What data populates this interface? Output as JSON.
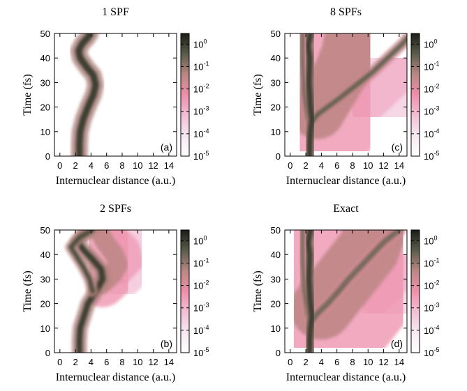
{
  "chart_data": [
    {
      "type": "heatmap",
      "title": "1 SPF",
      "panel_label": "(a)",
      "xlabel": "Internuclear distance (a.u.)",
      "ylabel": "Time (fs)",
      "xlim": [
        -0.7,
        15
      ],
      "xticks": [
        0,
        2,
        4,
        6,
        8,
        10,
        12,
        14
      ],
      "ylim": [
        0,
        50
      ],
      "yticks": [
        0,
        10,
        20,
        30,
        40,
        50
      ],
      "clim": [
        1e-05,
        3
      ],
      "log_color": true,
      "colormap": [
        "#ffffff",
        "#f7e9f3",
        "#f3bfd5",
        "#ee8fab",
        "#b98883",
        "#5a5c4a",
        "#1b1d17"
      ],
      "cticks": [
        {
          "value": 1e-05,
          "label": "10",
          "exponent": "-5"
        },
        {
          "value": 0.0001,
          "label": "10",
          "exponent": "-4"
        },
        {
          "value": 0.001,
          "label": "10",
          "exponent": "-3"
        },
        {
          "value": 0.01,
          "label": "10",
          "exponent": "-2"
        },
        {
          "value": 0.1,
          "label": "10",
          "exponent": "-1"
        },
        {
          "value": 1,
          "label": "10",
          "exponent": "0"
        }
      ],
      "ridges": [
        {
          "x": [
            2.5,
            2.5,
            2.6,
            3.0,
            3.6,
            4.3,
            4.6,
            4.3,
            3.5,
            2.6,
            2.4,
            2.9,
            3.5,
            3.9
          ],
          "y": [
            0,
            5,
            10,
            15,
            20,
            25,
            29,
            33,
            36,
            40,
            43,
            46,
            48,
            50
          ],
          "level": 1,
          "width": 0.9
        }
      ]
    },
    {
      "type": "heatmap",
      "title": "2 SPFs",
      "panel_label": "(b)",
      "xlabel": "Internuclear distance (a.u.)",
      "ylabel": "Time (fs)",
      "xlim": [
        -0.7,
        15
      ],
      "xticks": [
        0,
        2,
        4,
        6,
        8,
        10,
        12,
        14
      ],
      "ylim": [
        0,
        50
      ],
      "yticks": [
        0,
        10,
        20,
        30,
        40,
        50
      ],
      "clim": [
        1e-05,
        3
      ],
      "log_color": true,
      "colormap": [
        "#ffffff",
        "#f7e9f3",
        "#f3bfd5",
        "#ee8fab",
        "#b98883",
        "#5a5c4a",
        "#1b1d17"
      ],
      "cticks": [
        {
          "value": 1e-05,
          "label": "10",
          "exponent": "-5"
        },
        {
          "value": 0.0001,
          "label": "10",
          "exponent": "-4"
        },
        {
          "value": 0.001,
          "label": "10",
          "exponent": "-3"
        },
        {
          "value": 0.01,
          "label": "10",
          "exponent": "-2"
        },
        {
          "value": 0.1,
          "label": "10",
          "exponent": "-1"
        },
        {
          "value": 1,
          "label": "10",
          "exponent": "0"
        }
      ],
      "ridges": [
        {
          "x": [
            8,
            9.5,
            9,
            7.5
          ],
          "y": [
            32,
            37,
            43,
            48
          ],
          "level": 0.002,
          "width": 2.5
        },
        {
          "x": [
            5.5,
            6.8,
            7.5,
            7.0,
            5.8,
            5.0
          ],
          "y": [
            28,
            32,
            36,
            40,
            45,
            50
          ],
          "level": 0.03,
          "width": 2.5
        },
        {
          "x": [
            2.5,
            2.5,
            2.6,
            3.1,
            3.6,
            4.6,
            5.5,
            5.3,
            4.2,
            3.0,
            2.3,
            3.0,
            3.8
          ],
          "y": [
            0,
            5,
            10,
            15,
            20,
            25,
            30,
            34,
            38,
            42,
            45,
            48,
            50
          ],
          "level": 1,
          "width": 0.8
        },
        {
          "x": [
            4.2,
            3.8,
            3.0,
            2.0,
            1.4,
            2.5,
            4.2
          ],
          "y": [
            25,
            30,
            35,
            40,
            43,
            47,
            50
          ],
          "level": 0.6,
          "width": 0.6
        }
      ]
    },
    {
      "type": "heatmap",
      "title": "8 SPFs",
      "panel_label": "(c)",
      "xlabel": "Internuclear distance (a.u.)",
      "ylabel": "Time (fs)",
      "xlim": [
        -0.7,
        15
      ],
      "xticks": [
        0,
        2,
        4,
        6,
        8,
        10,
        12,
        14
      ],
      "ylim": [
        0,
        50
      ],
      "yticks": [
        0,
        10,
        20,
        30,
        40,
        50
      ],
      "clim": [
        1e-05,
        3
      ],
      "log_color": true,
      "colormap": [
        "#ffffff",
        "#f7e9f3",
        "#f3bfd5",
        "#ee8fab",
        "#b98883",
        "#5a5c4a",
        "#1b1d17"
      ],
      "cticks": [
        {
          "value": 1e-05,
          "label": "10",
          "exponent": "-5"
        },
        {
          "value": 0.0001,
          "label": "10",
          "exponent": "-4"
        },
        {
          "value": 0.001,
          "label": "10",
          "exponent": "-3"
        },
        {
          "value": 0.01,
          "label": "10",
          "exponent": "-2"
        },
        {
          "value": 0.1,
          "label": "10",
          "exponent": "-1"
        },
        {
          "value": 1,
          "label": "10",
          "exponent": "0"
        }
      ],
      "ridges": [
        {
          "x": [
            10,
            12,
            14
          ],
          "y": [
            22,
            28,
            34
          ],
          "level": 0.001,
          "width": 5
        },
        {
          "x": [
            3.5,
            5,
            6.5,
            7.5,
            8
          ],
          "y": [
            18,
            26,
            34,
            42,
            50
          ],
          "level": 0.03,
          "width": 7
        },
        {
          "x": [
            2.8,
            3.5,
            4.8,
            6.5,
            8.5,
            10.5,
            12.5,
            14.5,
            15
          ],
          "y": [
            14,
            17,
            20,
            24,
            29,
            34,
            40,
            46,
            48
          ],
          "level": 0.3,
          "width": 0.6
        },
        {
          "x": [
            2.3,
            1.8,
            1.6,
            1.6
          ],
          "y": [
            15,
            25,
            38,
            50
          ],
          "level": 0.2,
          "width": 0.5
        },
        {
          "x": [
            2.5,
            2.5,
            2.6,
            2.8,
            2.6,
            2.4,
            2.5,
            2.3,
            2.6
          ],
          "y": [
            0,
            5,
            10,
            15,
            20,
            30,
            40,
            45,
            50
          ],
          "level": 1,
          "width": 0.8
        }
      ]
    },
    {
      "type": "heatmap",
      "title": "Exact",
      "panel_label": "(d)",
      "xlabel": "Internuclear distance (a.u.)",
      "ylabel": "Time (fs)",
      "xlim": [
        -0.7,
        15
      ],
      "xticks": [
        0,
        2,
        4,
        6,
        8,
        10,
        12,
        14
      ],
      "ylim": [
        0,
        50
      ],
      "yticks": [
        0,
        10,
        20,
        30,
        40,
        50
      ],
      "clim": [
        1e-05,
        3
      ],
      "log_color": true,
      "colormap": [
        "#ffffff",
        "#f7e9f3",
        "#f3bfd5",
        "#ee8fab",
        "#b98883",
        "#5a5c4a",
        "#1b1d17"
      ],
      "cticks": [
        {
          "value": 1e-05,
          "label": "10",
          "exponent": "-5"
        },
        {
          "value": 0.0001,
          "label": "10",
          "exponent": "-4"
        },
        {
          "value": 0.001,
          "label": "10",
          "exponent": "-3"
        },
        {
          "value": 0.01,
          "label": "10",
          "exponent": "-2"
        },
        {
          "value": 0.1,
          "label": "10",
          "exponent": "-1"
        },
        {
          "value": 1,
          "label": "10",
          "exponent": "0"
        }
      ],
      "ridges": [
        {
          "x": [
            11,
            13,
            14.5
          ],
          "y": [
            22,
            28,
            34
          ],
          "level": 0.001,
          "width": 4
        },
        {
          "x": [
            4,
            6,
            8,
            10,
            11
          ],
          "y": [
            18,
            26,
            34,
            42,
            50
          ],
          "level": 0.03,
          "width": 8
        },
        {
          "x": [
            2.8,
            3.5,
            4.8,
            6.2,
            7.5,
            9,
            10.5,
            12,
            14
          ],
          "y": [
            13,
            16,
            20,
            25,
            30,
            35,
            40,
            45,
            50
          ],
          "level": 0.2,
          "width": 0.7
        },
        {
          "x": [
            2.3,
            1.8,
            1.6,
            1.6
          ],
          "y": [
            15,
            25,
            38,
            50
          ],
          "level": 0.2,
          "width": 0.5
        },
        {
          "x": [
            2.5,
            2.5,
            2.6,
            2.8,
            2.6,
            2.4,
            2.5,
            2.3,
            2.6
          ],
          "y": [
            0,
            5,
            10,
            15,
            20,
            30,
            40,
            45,
            50
          ],
          "level": 1,
          "width": 0.8
        }
      ]
    }
  ]
}
